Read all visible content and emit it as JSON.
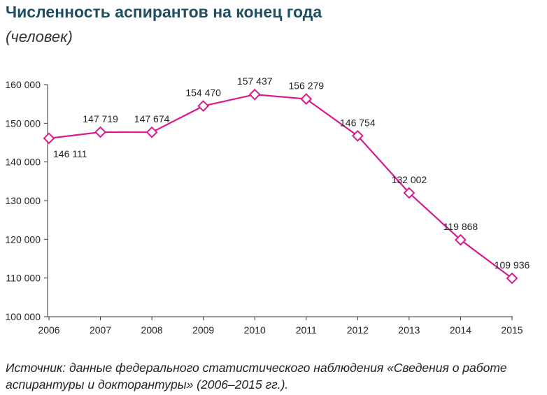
{
  "title": "Численность аспирантов на конец года",
  "subtitle": "(человек)",
  "source": "Источник: данные федерального статистического наблюдения «Сведения о работе аспирантуры и докторантуры» (2006–2015 гг.).",
  "colors": {
    "series": "#d81b8c",
    "title": "#1f4e62",
    "axis": "#333333",
    "grid": "#d9d9d9"
  },
  "chart_data": {
    "type": "line",
    "title": "Численность аспирантов на конец года",
    "subtitle": "(человек)",
    "xlabel": "",
    "ylabel": "",
    "x": [
      "2006",
      "2007",
      "2008",
      "2009",
      "2010",
      "2011",
      "2012",
      "2013",
      "2014",
      "2015"
    ],
    "series": [
      {
        "values": [
          146111,
          147719,
          147674,
          154470,
          157437,
          156279,
          146754,
          132002,
          119868,
          109936
        ],
        "data_labels": [
          "146 111",
          "147 719",
          "147 674",
          "154 470",
          "157 437",
          "156 279",
          "146 754",
          "132 002",
          "119 868",
          "109 936"
        ],
        "marker": "diamond-open"
      }
    ],
    "ylim": [
      100000,
      160000
    ],
    "yticks": [
      100000,
      110000,
      120000,
      130000,
      140000,
      150000,
      160000
    ],
    "ytick_labels": [
      "100 000",
      "110 000",
      "120 000",
      "130 000",
      "140 000",
      "150 000",
      "160 000"
    ],
    "grid": false,
    "legend": "none"
  }
}
